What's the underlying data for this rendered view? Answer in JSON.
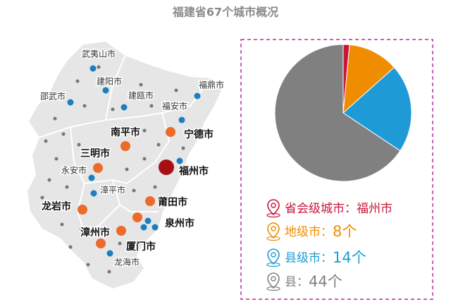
{
  "title": "福建省67个城市概况",
  "map": {
    "cities": [
      "武夷山市",
      "建阳市",
      "邵武市",
      "建瓯市",
      "福鼎市",
      "福安市",
      "南平市",
      "宁德市",
      "三明市",
      "福州市",
      "永安市",
      "漳平市",
      "龙岩市",
      "莆田市",
      "泉州市",
      "漳州市",
      "厦门市",
      "龙海市"
    ]
  },
  "chart_data": {
    "type": "pie",
    "categories": [
      "省会级城市",
      "地级市",
      "县级市",
      "县"
    ],
    "values": [
      1,
      8,
      14,
      44
    ],
    "value_labels": [
      null,
      "8个",
      "14个",
      "44个"
    ],
    "capital": "福州市",
    "separator": "：",
    "colors": [
      "#c8143c",
      "#f08c00",
      "#1e9bd7",
      "#808080"
    ]
  }
}
